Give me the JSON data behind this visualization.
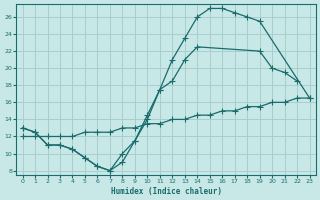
{
  "background_color": "#c8e8e8",
  "grid_color": "#a8cece",
  "line_color": "#1a6b6b",
  "xlabel": "Humidex (Indice chaleur)",
  "xlim": [
    -0.5,
    23.5
  ],
  "ylim": [
    7.5,
    27.5
  ],
  "yticks": [
    8,
    10,
    12,
    14,
    16,
    18,
    20,
    22,
    24,
    26
  ],
  "xticks": [
    0,
    1,
    2,
    3,
    4,
    5,
    6,
    7,
    8,
    9,
    10,
    11,
    12,
    13,
    14,
    15,
    16,
    17,
    18,
    19,
    20,
    21,
    22,
    23
  ],
  "line1_x": [
    0,
    1,
    2,
    3,
    4,
    5,
    6,
    7,
    8,
    9,
    10,
    11,
    12,
    13,
    14,
    15,
    16,
    17,
    18,
    19,
    23
  ],
  "line1_y": [
    13,
    12.5,
    11,
    11,
    10.5,
    9.5,
    8.5,
    8,
    10,
    11.5,
    14,
    17.5,
    21,
    23.5,
    26,
    27,
    27,
    26.5,
    26,
    25.5,
    16.5
  ],
  "line2_x": [
    0,
    1,
    2,
    3,
    4,
    5,
    6,
    7,
    8,
    9,
    10,
    11,
    12,
    13,
    14,
    19,
    20,
    21,
    22
  ],
  "line2_y": [
    13,
    12.5,
    11,
    11,
    10.5,
    9.5,
    8.5,
    8,
    9,
    11.5,
    14.5,
    17.5,
    18.5,
    21,
    22.5,
    22,
    20,
    19.5,
    18.5
  ],
  "line3_x": [
    0,
    1,
    2,
    3,
    4,
    5,
    6,
    7,
    8,
    9,
    10,
    11,
    12,
    13,
    14,
    15,
    16,
    17,
    18,
    19,
    20,
    21,
    22,
    23
  ],
  "line3_y": [
    12,
    12,
    12,
    12,
    12,
    12.5,
    12.5,
    12.5,
    13,
    13,
    13.5,
    13.5,
    14,
    14,
    14.5,
    14.5,
    15,
    15,
    15.5,
    15.5,
    16,
    16,
    16.5,
    16.5
  ]
}
